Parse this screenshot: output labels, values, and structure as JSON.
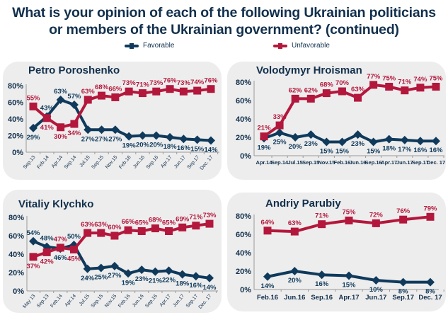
{
  "title_line1": "What is your opinion of each of the following Ukrainian politicians",
  "title_line2": "or members of the Ukrainian government? (continued)",
  "legend": {
    "favorable": "Favorable",
    "unfavorable": "Unfavorable"
  },
  "colors": {
    "favorable": "#0f3a5c",
    "unfavorable": "#b4173c",
    "title": "#12304d",
    "panel": "#ededed"
  },
  "chart_data": [
    {
      "type": "line",
      "title": "Petro Poroshenko",
      "categories": [
        "Sep.13",
        "Feb.14",
        "Apr.14",
        "Sep.14",
        "Jul.15",
        "Sep.15",
        "Nov.15",
        "Feb.16",
        "Jun.16",
        "Sep.16",
        "Apr.17",
        "Jun.17",
        "Sep.17",
        "Dec. 17"
      ],
      "x_label_style": "rotated",
      "yticks": [
        "0%",
        "20%",
        "40%",
        "60%",
        "80%"
      ],
      "ylim": [
        0,
        80
      ],
      "series": [
        {
          "name": "Favorable",
          "values": [
            29,
            43,
            63,
            57,
            27,
            27,
            27,
            19,
            20,
            20,
            18,
            16,
            15,
            14
          ]
        },
        {
          "name": "Unfavorable",
          "values": [
            55,
            41,
            30,
            34,
            63,
            68,
            66,
            73,
            71,
            73,
            76,
            73,
            74,
            76
          ]
        }
      ]
    },
    {
      "type": "line",
      "title": "Volodymyr Hroisman",
      "categories": [
        "Apr.14",
        "Sep.14",
        "Jul.15",
        "Sep.15",
        "Nov.15",
        "Feb.16",
        "Jun.16",
        "Sep.16",
        "Apr.17",
        "Jun.17",
        "Sep.17",
        "Dec. 17"
      ],
      "x_label_style": "horizontal",
      "yticks": [
        "0%",
        "20%",
        "40%",
        "60%",
        "80%"
      ],
      "ylim": [
        0,
        80
      ],
      "series": [
        {
          "name": "Favorable",
          "values": [
            19,
            25,
            20,
            23,
            15,
            15,
            23,
            15,
            18,
            17,
            16,
            16
          ]
        },
        {
          "name": "Unfavorable",
          "values": [
            21,
            33,
            62,
            62,
            68,
            70,
            63,
            77,
            75,
            71,
            74,
            75
          ]
        }
      ]
    },
    {
      "type": "line",
      "title": "Vitaliy Klychko",
      "categories": [
        "May 13",
        "Sep.13",
        "Feb.14",
        "Apr.14",
        "Jul.15",
        "Sep.15",
        "Nov.15",
        "Feb.16",
        "Jun.16",
        "Sep.16",
        "Apr.17",
        "Jun.17",
        "Sep.17",
        "Dec. 17"
      ],
      "x_label_style": "rotated",
      "yticks": [
        "0%",
        "20%",
        "40%",
        "60%",
        "80%"
      ],
      "ylim": [
        0,
        80
      ],
      "series": [
        {
          "name": "Favorable",
          "values": [
            54,
            48,
            46,
            50,
            24,
            25,
            27,
            19,
            23,
            21,
            22,
            18,
            16,
            14
          ]
        },
        {
          "name": "Unfavorable",
          "values": [
            37,
            42,
            47,
            45,
            63,
            63,
            60,
            66,
            65,
            68,
            65,
            69,
            71,
            73
          ]
        }
      ]
    },
    {
      "type": "line",
      "title": "Andriy Parubiy",
      "categories": [
        "Feb.16",
        "Jun.16",
        "Sep.16",
        "Apr.17",
        "Jun.17",
        "Sep.17",
        "Dec. 17"
      ],
      "x_label_style": "horizontal",
      "yticks": [
        "0%",
        "20%",
        "40%",
        "60%",
        "80%"
      ],
      "ylim": [
        0,
        80
      ],
      "series": [
        {
          "name": "Favorable",
          "values": [
            14,
            20,
            16,
            15,
            10,
            8,
            8
          ]
        },
        {
          "name": "Unfavorable",
          "values": [
            64,
            63,
            71,
            75,
            72,
            76,
            79
          ]
        }
      ]
    }
  ]
}
